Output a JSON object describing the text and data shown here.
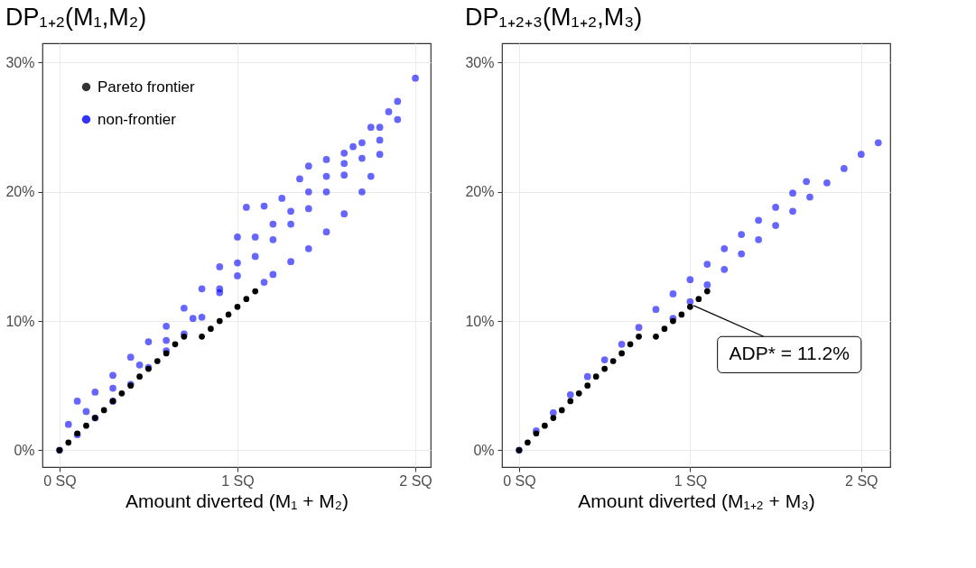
{
  "chart_data": [
    {
      "type": "scatter",
      "title": "DP₁₊₂(M₁,M₂)",
      "xlabel": "Amount diverted (M₁ + M₂)",
      "xlim": [
        -0.096,
        2.086
      ],
      "xticks": [
        {
          "value": 0,
          "label": "0 SQ"
        },
        {
          "value": 1,
          "label": "1 SQ"
        },
        {
          "value": 2,
          "label": "2 SQ"
        }
      ],
      "ylim": [
        -1.3,
        31.5
      ],
      "yticks": [
        {
          "value": 0,
          "label": "0%"
        },
        {
          "value": 10,
          "label": "10%"
        },
        {
          "value": 20,
          "label": "20%"
        },
        {
          "value": 30,
          "label": "30%"
        }
      ],
      "grid": true,
      "legend": "top left",
      "marker": "circle",
      "series": [
        {
          "name": "Pareto frontier",
          "color": "#000000",
          "x": [
            0,
            0.05,
            0.1,
            0.15,
            0.2,
            0.25,
            0.3,
            0.35,
            0.4,
            0.45,
            0.5,
            0.55,
            0.6,
            0.65,
            0.7,
            0.8,
            0.85,
            0.9,
            0.95,
            1.0,
            1.05,
            1.1
          ],
          "values": [
            0,
            0.6,
            1.3,
            1.9,
            2.5,
            3.1,
            3.8,
            4.4,
            5.0,
            5.7,
            6.3,
            6.9,
            7.5,
            8.2,
            8.8,
            8.8,
            9.4,
            10.0,
            10.5,
            11.1,
            11.7,
            12.3
          ]
        },
        {
          "name": "non-frontier",
          "color": "#0000ff",
          "x": [
            0,
            0.05,
            0.1,
            0.2,
            0.3,
            0.4,
            0.5,
            0.6,
            0.7,
            0.8,
            0.9,
            1.0,
            1.05,
            1.15,
            1.25,
            1.35,
            1.4,
            1.5,
            1.6,
            1.65,
            1.75,
            1.85,
            1.9,
            2.0,
            0.1,
            0.2,
            0.3,
            0.4,
            0.5,
            0.6,
            0.7,
            0.8,
            0.9,
            1.0,
            1.1,
            1.2,
            1.3,
            1.4,
            1.5,
            1.6,
            1.7,
            1.8,
            1.9,
            0.15,
            0.3,
            0.45,
            0.6,
            0.75,
            0.9,
            1.0,
            1.1,
            1.2,
            1.3,
            1.4,
            1.5,
            1.6,
            1.7,
            1.8,
            1.15,
            1.2,
            1.3,
            1.4,
            1.5,
            1.6,
            1.7,
            1.75,
            1.8
          ],
          "values": [
            0,
            2.0,
            3.8,
            4.5,
            5.8,
            7.2,
            8.4,
            9.6,
            11.0,
            12.5,
            14.2,
            16.5,
            18.8,
            18.9,
            19.5,
            21.0,
            22.0,
            22.5,
            23.0,
            23.5,
            25.0,
            26.2,
            27.0,
            28.8,
            1.2,
            2.5,
            3.8,
            5.1,
            6.4,
            7.7,
            9.0,
            10.3,
            12.2,
            13.5,
            15.0,
            16.3,
            17.5,
            18.7,
            20.0,
            21.3,
            22.6,
            24.0,
            25.6,
            3.0,
            4.8,
            6.6,
            8.5,
            10.2,
            12.5,
            14.5,
            16.5,
            17.5,
            18.5,
            20.0,
            21.2,
            22.2,
            23.8,
            25.0,
            13.0,
            13.6,
            14.6,
            15.6,
            16.9,
            18.3,
            20.0,
            21.2,
            22.9
          ]
        }
      ]
    },
    {
      "type": "scatter",
      "title": "DP₁₊₂₊₃(M₁₊₂,M₃)",
      "xlabel": "Amount diverted (M₁₊₂ + M₃)",
      "xlim": [
        -0.1,
        2.17
      ],
      "xticks": [
        {
          "value": 0,
          "label": "0 SQ"
        },
        {
          "value": 1,
          "label": "1 SQ"
        },
        {
          "value": 2,
          "label": "2 SQ"
        }
      ],
      "ylim": [
        -1.3,
        31.5
      ],
      "yticks": [
        {
          "value": 0,
          "label": "0%"
        },
        {
          "value": 10,
          "label": "10%"
        },
        {
          "value": 20,
          "label": "20%"
        },
        {
          "value": 30,
          "label": "30%"
        }
      ],
      "grid": true,
      "marker": "circle",
      "annotations": [
        {
          "text": "ADP* = 11.2%",
          "x": 1.02,
          "y": 11.2
        }
      ],
      "series": [
        {
          "color": "#000000",
          "x": [
            0,
            0.05,
            0.1,
            0.15,
            0.2,
            0.25,
            0.3,
            0.35,
            0.4,
            0.45,
            0.5,
            0.55,
            0.6,
            0.65,
            0.7,
            0.8,
            0.85,
            0.9,
            0.95,
            1.0,
            1.05,
            1.1
          ],
          "values": [
            0,
            0.6,
            1.3,
            1.9,
            2.5,
            3.1,
            3.8,
            4.4,
            5.0,
            5.7,
            6.3,
            6.9,
            7.5,
            8.2,
            8.8,
            8.8,
            9.4,
            10.0,
            10.5,
            11.1,
            11.7,
            12.3
          ]
        },
        {
          "color": "#0000ff",
          "x": [
            0,
            0.1,
            0.2,
            0.3,
            0.4,
            0.5,
            0.6,
            0.7,
            0.8,
            0.9,
            1.0,
            1.1,
            1.2,
            1.3,
            1.4,
            1.5,
            1.6,
            1.68,
            0.9,
            1.0,
            1.1,
            1.2,
            1.3,
            1.4,
            1.5,
            1.6,
            1.7,
            1.8,
            1.9,
            2.0,
            2.1
          ],
          "values": [
            0,
            1.5,
            2.9,
            4.3,
            5.7,
            7.0,
            8.2,
            9.5,
            10.9,
            12.1,
            13.2,
            14.4,
            15.6,
            16.7,
            17.8,
            18.8,
            19.9,
            20.8,
            10.2,
            11.5,
            12.8,
            14.0,
            15.2,
            16.3,
            17.4,
            18.5,
            19.6,
            20.7,
            21.8,
            22.9,
            23.8
          ]
        }
      ]
    }
  ]
}
